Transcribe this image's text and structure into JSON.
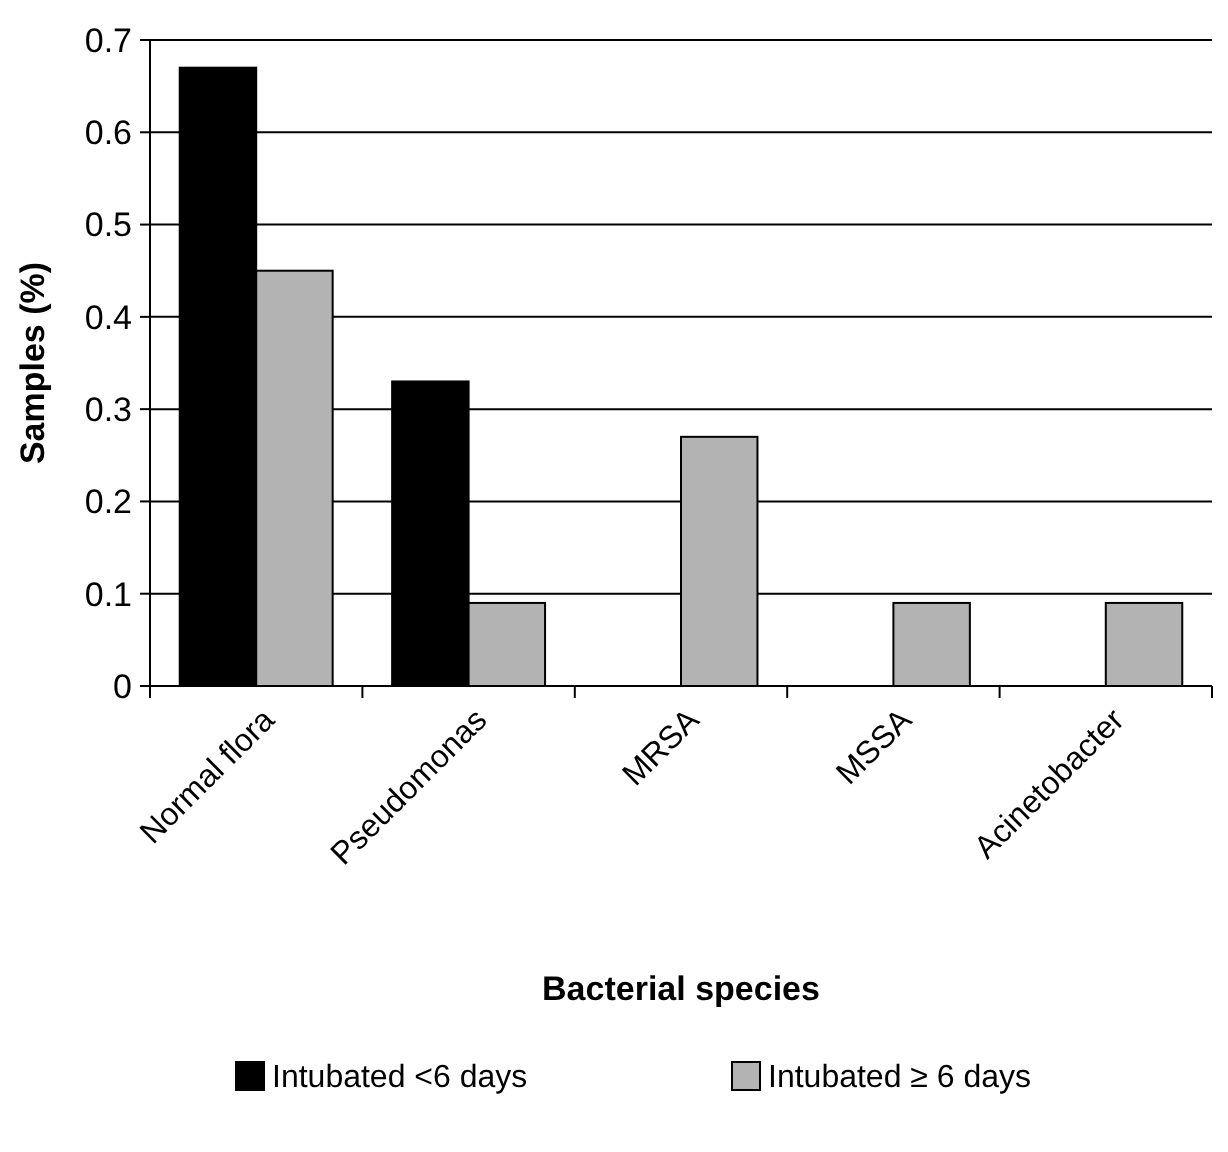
{
  "chart_data": {
    "type": "bar",
    "xlabel": "Bacterial species",
    "ylabel": "Samples (%)",
    "categories": [
      "Normal flora",
      "Pseudomonas",
      "MRSA",
      "MSSA",
      "Acinetobacter"
    ],
    "series": [
      {
        "name": "Intubated <6 days",
        "color": "#000000",
        "values": [
          0.67,
          0.33,
          0,
          0,
          0
        ]
      },
      {
        "name": "Intubated ≥ 6 days",
        "color": "#b3b3b3",
        "values": [
          0.45,
          0.09,
          0.27,
          0.09,
          0.09
        ]
      }
    ],
    "ylim": [
      0,
      0.7
    ],
    "yticks": [
      0,
      0.1,
      0.2,
      0.3,
      0.4,
      0.5,
      0.6,
      0.7
    ],
    "grid": "y",
    "legend": "bottom"
  }
}
